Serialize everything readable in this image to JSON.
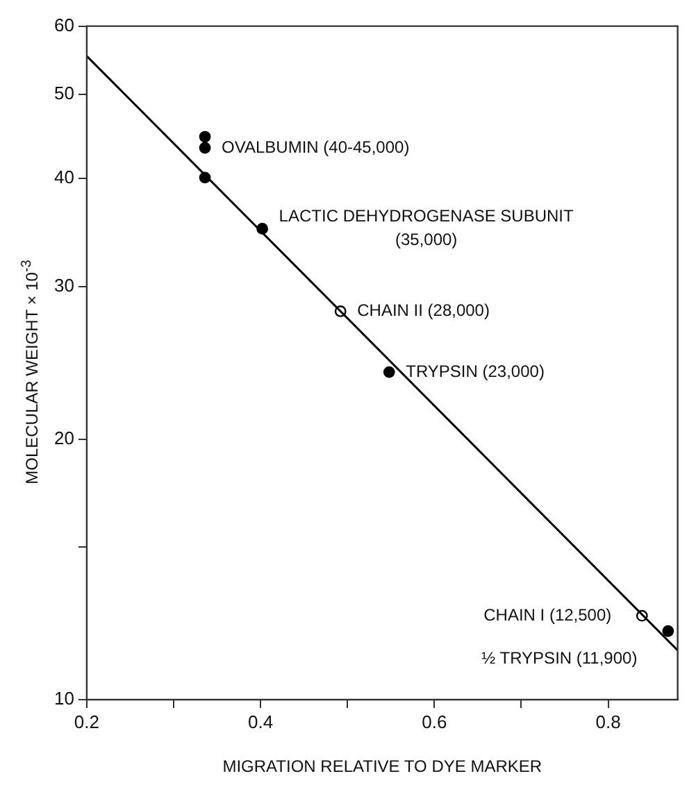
{
  "chart_data": {
    "type": "scatter",
    "xlabel": "MIGRATION RELATIVE TO DYE MARKER",
    "ylabel": "MOLECULAR WEIGHT × 10$^{-3}$",
    "series": [
      {
        "type": "line",
        "marker": "none",
        "color": "#000000",
        "x": [
          0.2,
          0.88
        ],
        "values": [
          55.4,
          11.4
        ]
      },
      {
        "color": "#000000",
        "x": [
          0.336,
          0.336,
          0.336,
          0.402,
          0.548,
          0.869
        ],
        "values": [
          44.7,
          43.4,
          40.1,
          35.0,
          23.9,
          12.0
        ]
      },
      {
        "color": "#ffffff",
        "x": [
          0.492,
          0.839
        ],
        "values": [
          28.1,
          12.5
        ]
      }
    ],
    "xlim": [
      0.2,
      0.88
    ],
    "ylim": [
      10,
      60
    ],
    "log": true,
    "xticks": [
      0.2,
      {
        "value": 0.3,
        "label": null
      },
      0.4,
      {
        "value": 0.5,
        "label": null
      },
      0.6,
      {
        "value": 0.7,
        "label": null
      },
      0.8
    ],
    "yticks": [
      10,
      {
        "value": 15,
        "label": null
      },
      20,
      30,
      40,
      50,
      60
    ],
    "marker": "circle",
    "line_style": "solid",
    "annotations": [
      {
        "text": "OVALBUMIN (40-45,000)",
        "x": 0.336,
        "y": 43.4
      },
      {
        "text": "LACTIC DEHYDROGENASE SUBUNIT (35,000)",
        "x": 0.402,
        "y": 35.0
      },
      {
        "text": "CHAIN II (28,000)",
        "x": 0.492,
        "y": 28.1
      },
      {
        "text": "TRYPSIN (23,000)",
        "x": 0.548,
        "y": 23.9
      },
      {
        "text": "CHAIN I (12,500)",
        "x": 0.839,
        "y": 12.5
      },
      {
        "text": "½ TRYPSIN (11,900)",
        "x": 0.869,
        "y": 12.0
      }
    ]
  }
}
